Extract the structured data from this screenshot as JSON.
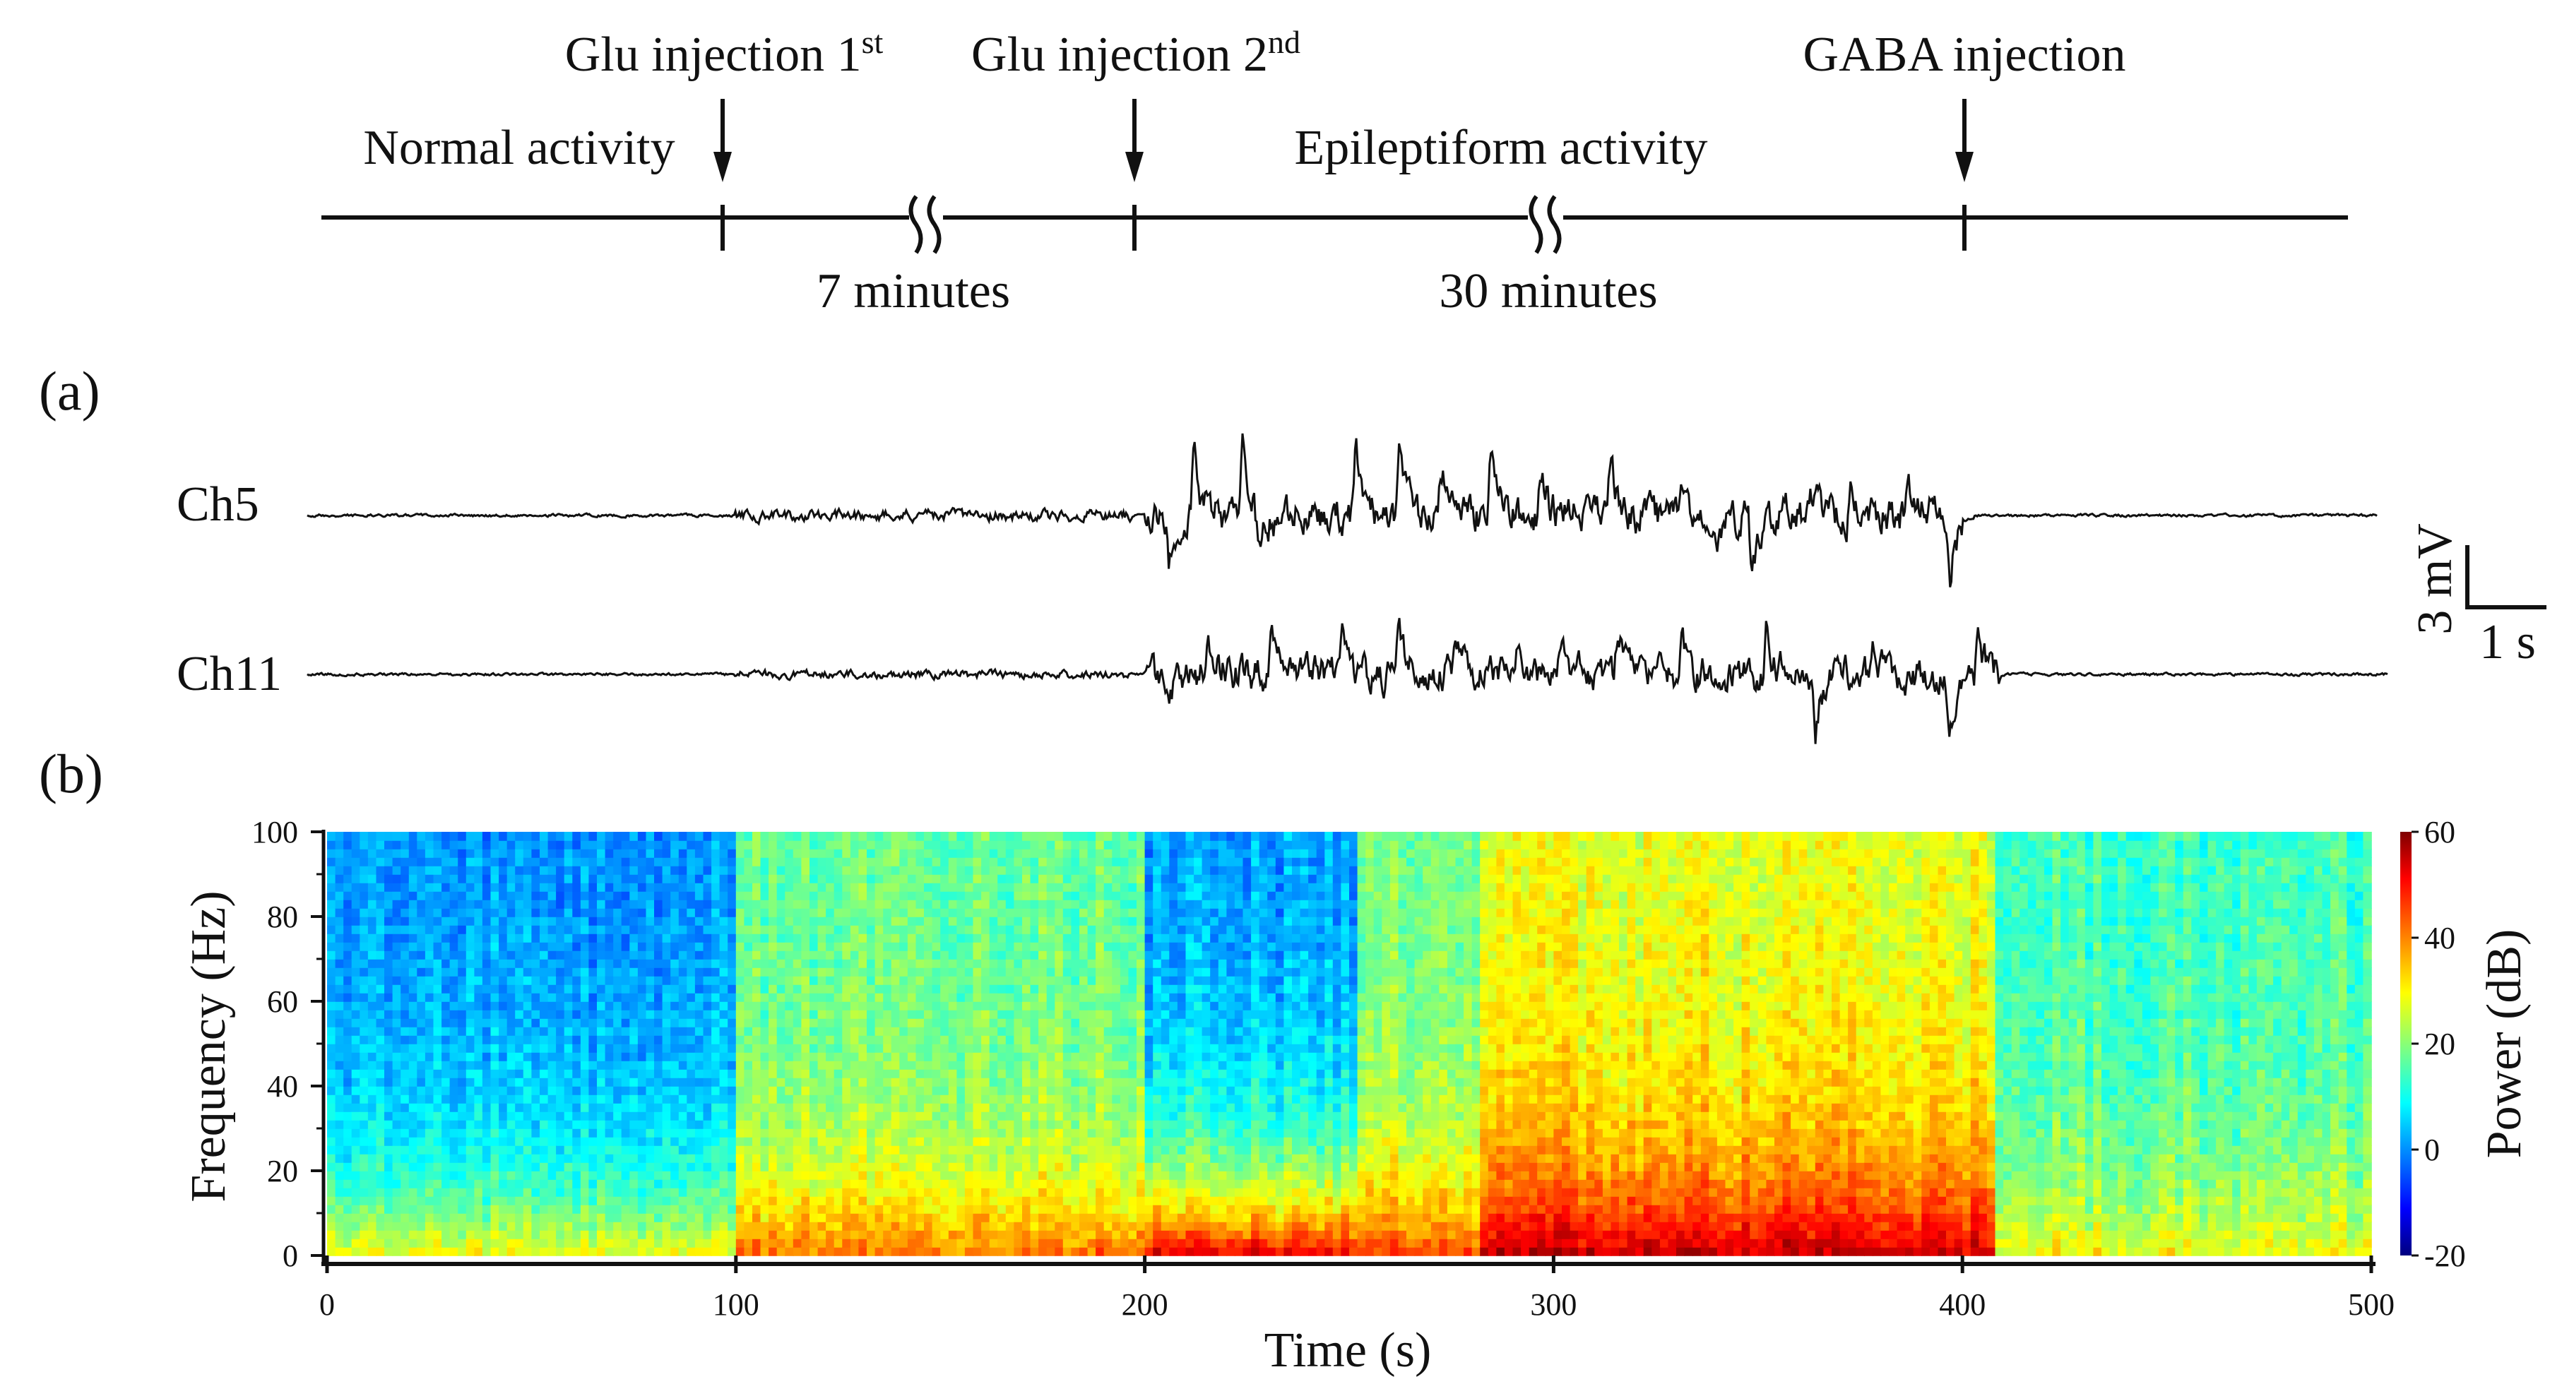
{
  "timeline": {
    "normal_label": "Normal activity",
    "epileptiform_label": "Epileptiform activity",
    "glu1_label": "Glu injection 1",
    "glu1_sup": "st",
    "glu2_label": "Glu injection 2",
    "glu2_sup": "nd",
    "gaba_label": "GABA injection",
    "gap1_label": "7 minutes",
    "gap2_label": "30 minutes"
  },
  "panel_a": {
    "label": "(a)",
    "channels": [
      "Ch5",
      "Ch11"
    ],
    "scale_v": "3 mV",
    "scale_t": "1 s"
  },
  "panel_b": {
    "label": "(b)",
    "colorbar_title": "Power (dB)",
    "colorbar_ticks": [
      "60",
      "40",
      "20",
      "0",
      "-20"
    ]
  },
  "chart_data": {
    "type": "heatmap",
    "title": "",
    "xlabel": "Time (s)",
    "ylabel": "Frequency (Hz)",
    "xlim": [
      0,
      500
    ],
    "ylim": [
      0,
      100
    ],
    "xticks": [
      0,
      100,
      200,
      300,
      400,
      500
    ],
    "yticks": [
      0,
      20,
      40,
      60,
      80,
      100
    ],
    "colorbar": {
      "label": "Power (dB)",
      "range": [
        -20,
        60
      ],
      "ticks": [
        -20,
        0,
        20,
        40,
        60
      ]
    },
    "time_segments": [
      {
        "t_start": 0,
        "t_end": 100,
        "low_freq_power_db": 30,
        "high_freq_power_db": 2
      },
      {
        "t_start": 100,
        "t_end": 200,
        "low_freq_power_db": 42,
        "high_freq_power_db": 18
      },
      {
        "t_start": 200,
        "t_end": 253,
        "low_freq_power_db": 52,
        "high_freq_power_db": 2
      },
      {
        "t_start": 253,
        "t_end": 283,
        "low_freq_power_db": 46,
        "high_freq_power_db": 20
      },
      {
        "t_start": 283,
        "t_end": 408,
        "low_freq_power_db": 55,
        "high_freq_power_db": 28
      },
      {
        "t_start": 408,
        "t_end": 500,
        "low_freq_power_db": 30,
        "high_freq_power_db": 15
      }
    ]
  }
}
